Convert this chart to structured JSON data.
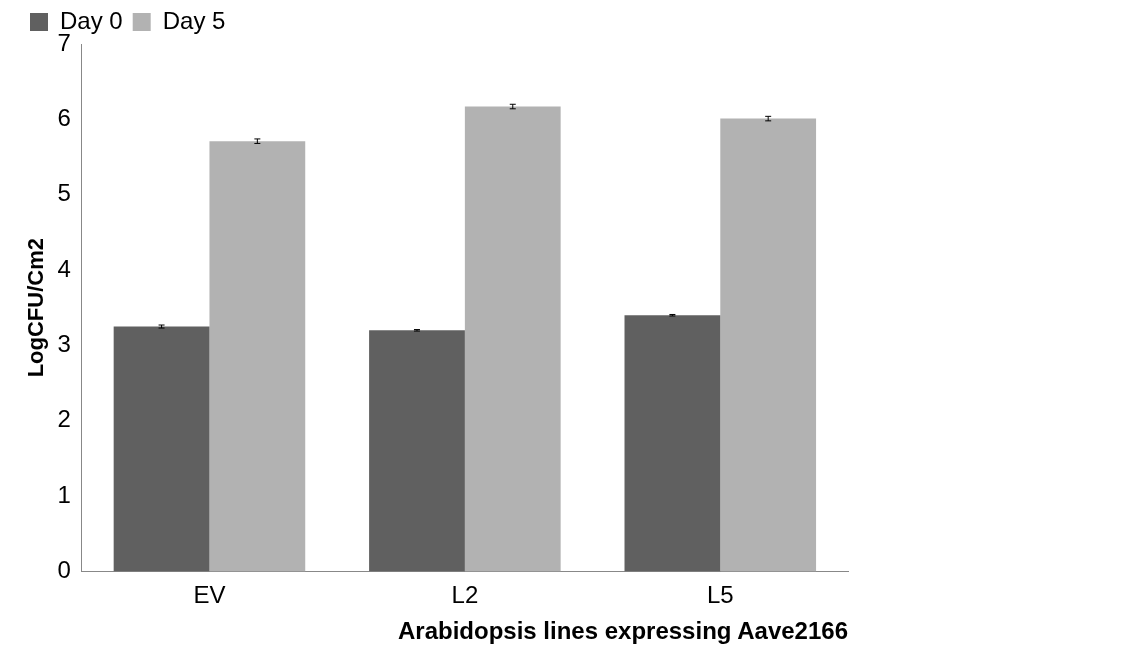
{
  "chart_data": {
    "type": "bar",
    "xlabel": "Arabidopsis lines expressing Aave2166",
    "ylabel": "LogCFU/Cm2",
    "categories": [
      "EV",
      "L2",
      "L5"
    ],
    "series": [
      {
        "name": "Day 0",
        "color": "#606060",
        "values": [
          3.25,
          3.2,
          3.4
        ],
        "errors": [
          0.02,
          0.01,
          0.01
        ]
      },
      {
        "name": "Day 5",
        "color": "#b2b2b2",
        "values": [
          5.71,
          6.17,
          6.01
        ],
        "errors": [
          0.03,
          0.03,
          0.03
        ]
      }
    ],
    "ylim": [
      0,
      7
    ],
    "yticks": [
      0,
      1,
      2,
      3,
      4,
      5,
      6,
      7
    ],
    "grid": false,
    "legend": "top left"
  }
}
